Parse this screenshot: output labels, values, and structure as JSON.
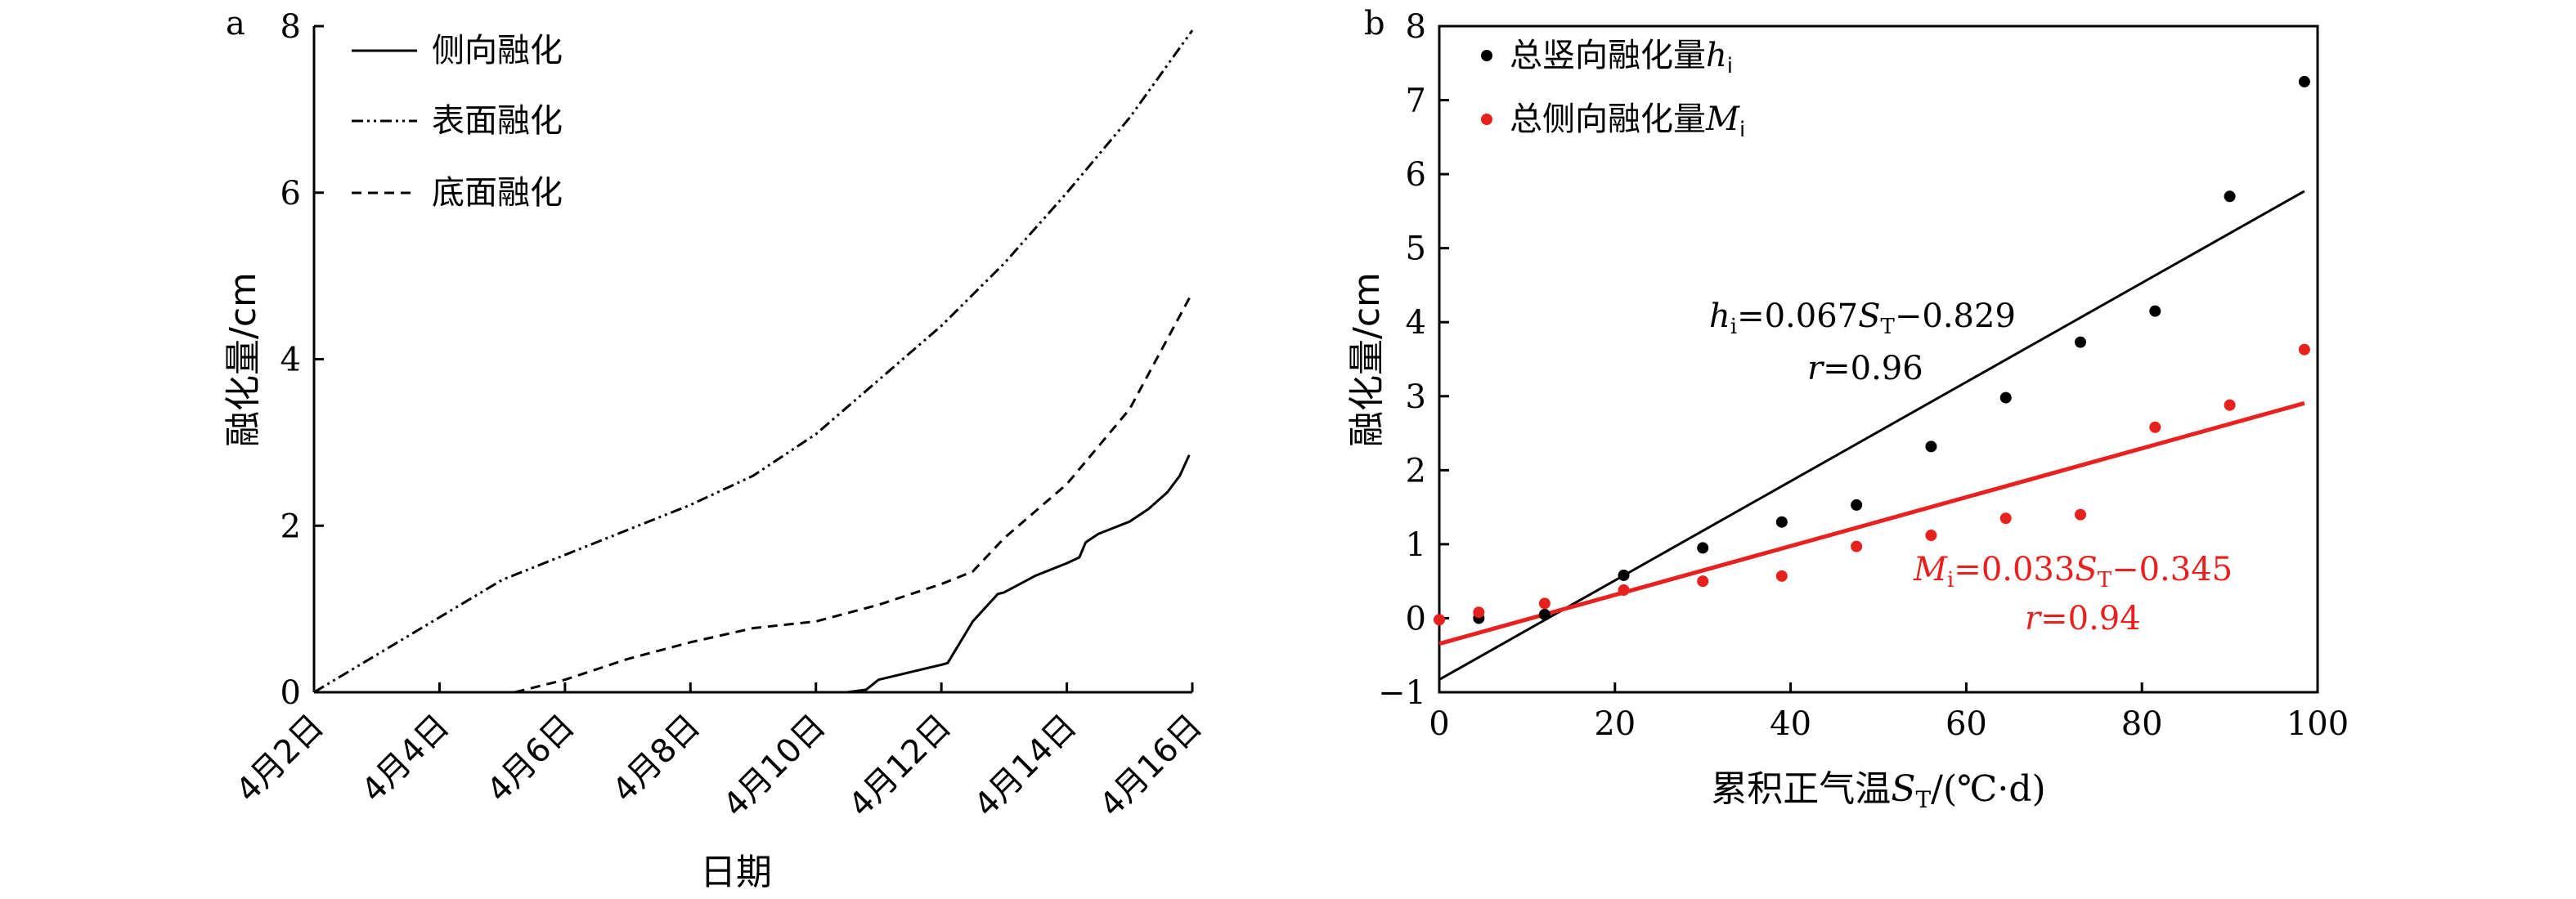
{
  "chart_data": [
    {
      "panel_label": "a",
      "type": "line",
      "xlabel": "日期",
      "ylabel": "融化量/cm",
      "ylim": [
        0,
        8
      ],
      "yticks": [
        0,
        2,
        4,
        6,
        8
      ],
      "xticks": [
        "4月2日",
        "4月4日",
        "4月6日",
        "4月8日",
        "4月10日",
        "4月12日",
        "4月14日",
        "4月16日"
      ],
      "xtick_days": [
        2,
        4,
        6,
        8,
        10,
        12,
        14,
        16
      ],
      "xlim": [
        2,
        16
      ],
      "legend_position": "top-left",
      "series": [
        {
          "name": "侧向融化",
          "style": "solid",
          "x": [
            2,
            10.5,
            10.8,
            11,
            12,
            12.1,
            12.5,
            12.9,
            13,
            13.5,
            14,
            14.2,
            14.3,
            14.5,
            15,
            15.3,
            15.6,
            15.8,
            15.95
          ],
          "y": [
            0,
            0,
            0.03,
            0.15,
            0.33,
            0.35,
            0.85,
            1.18,
            1.2,
            1.4,
            1.55,
            1.62,
            1.8,
            1.9,
            2.05,
            2.2,
            2.4,
            2.6,
            2.85
          ]
        },
        {
          "name": "表面融化",
          "style": "dash-dot-dot",
          "x": [
            2,
            5,
            8,
            9,
            10,
            11,
            12,
            13,
            14,
            15,
            16
          ],
          "y": [
            0,
            1.35,
            2.25,
            2.6,
            3.1,
            3.75,
            4.4,
            5.15,
            6.0,
            6.9,
            7.95
          ]
        },
        {
          "name": "底面融化",
          "style": "dashed",
          "x": [
            5.2,
            6,
            7,
            8,
            9,
            10,
            11,
            12,
            12.5,
            13,
            14,
            15,
            16
          ],
          "y": [
            0,
            0.15,
            0.4,
            0.6,
            0.77,
            0.85,
            1.05,
            1.3,
            1.45,
            1.85,
            2.5,
            3.4,
            4.8
          ]
        }
      ]
    },
    {
      "panel_label": "b",
      "type": "scatter",
      "xlabel": "累积正气温S_T/(℃·d)",
      "ylabel": "融化量/cm",
      "xlim": [
        0,
        100
      ],
      "ylim": [
        -1,
        8
      ],
      "xticks": [
        0,
        20,
        40,
        60,
        80,
        100
      ],
      "yticks": [
        -1,
        0,
        1,
        2,
        3,
        4,
        5,
        6,
        7,
        8
      ],
      "legend_position": "top-left",
      "series": [
        {
          "name": "总竖向融化量h_i",
          "color": "#000000",
          "x": [
            4.5,
            12,
            21,
            30,
            39,
            47.5,
            56,
            64.5,
            73,
            81.5,
            90,
            98.5
          ],
          "y": [
            0.0,
            0.05,
            0.58,
            0.95,
            1.3,
            1.53,
            2.32,
            2.98,
            3.73,
            4.15,
            5.7,
            7.25
          ],
          "fit": {
            "slope": 0.067,
            "intercept": -0.829,
            "r": 0.96,
            "equation": "h_i=0.067S_T−0.829",
            "r_label": "r=0.96",
            "color": "#000000"
          }
        },
        {
          "name": "总侧向融化量M_i",
          "color": "#e8201e",
          "x": [
            0,
            4.5,
            12,
            21,
            30,
            39,
            47.5,
            56,
            64.5,
            73,
            81.5,
            90,
            98.5
          ],
          "y": [
            -0.02,
            0.08,
            0.2,
            0.38,
            0.5,
            0.57,
            0.97,
            1.12,
            1.35,
            1.4,
            2.58,
            2.88,
            3.63
          ],
          "fit": {
            "slope": 0.033,
            "intercept": -0.345,
            "r": 0.94,
            "equation": "M_i=0.033S_T−0.345",
            "r_label": "r=0.94",
            "color": "#e8201e"
          }
        }
      ]
    }
  ]
}
